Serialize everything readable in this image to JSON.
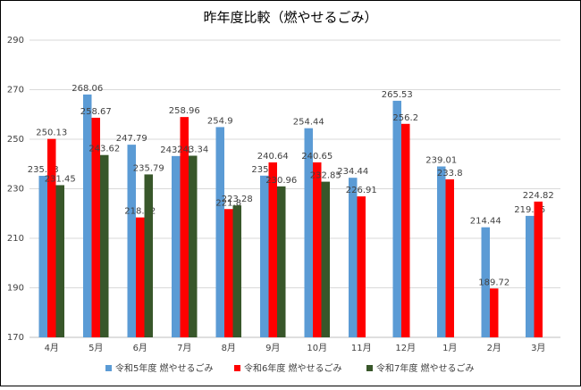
{
  "chart_data": {
    "type": "bar",
    "title": "昨年度比較（燃やせるごみ）",
    "categories": [
      "4月",
      "5月",
      "6月",
      "7月",
      "8月",
      "9月",
      "10月",
      "11月",
      "12月",
      "1月",
      "2月",
      "3月"
    ],
    "series": [
      {
        "name": "令和5年度 燃やせるごみ",
        "color": "#5b9bd5",
        "values": [
          235.23,
          268.06,
          247.79,
          243.21,
          254.9,
          235.3,
          254.44,
          234.44,
          265.53,
          239.01,
          214.44,
          219.05
        ]
      },
      {
        "name": "令和6年度 燃やせるごみ",
        "color": "#ff0000",
        "values": [
          250.13,
          258.67,
          218.42,
          258.96,
          221.8,
          240.64,
          240.65,
          226.91,
          256.2,
          233.8,
          189.72,
          224.82
        ]
      },
      {
        "name": "令和7年度 燃やせるごみ",
        "color": "#38572a",
        "values": [
          231.45,
          243.62,
          235.79,
          243.34,
          223.28,
          230.96,
          232.85,
          null,
          null,
          null,
          null,
          null
        ]
      }
    ],
    "ylim": [
      170,
      290
    ],
    "yticks": [
      170,
      190,
      210,
      230,
      250,
      270,
      290
    ],
    "grid": true,
    "legend": "bottom"
  }
}
